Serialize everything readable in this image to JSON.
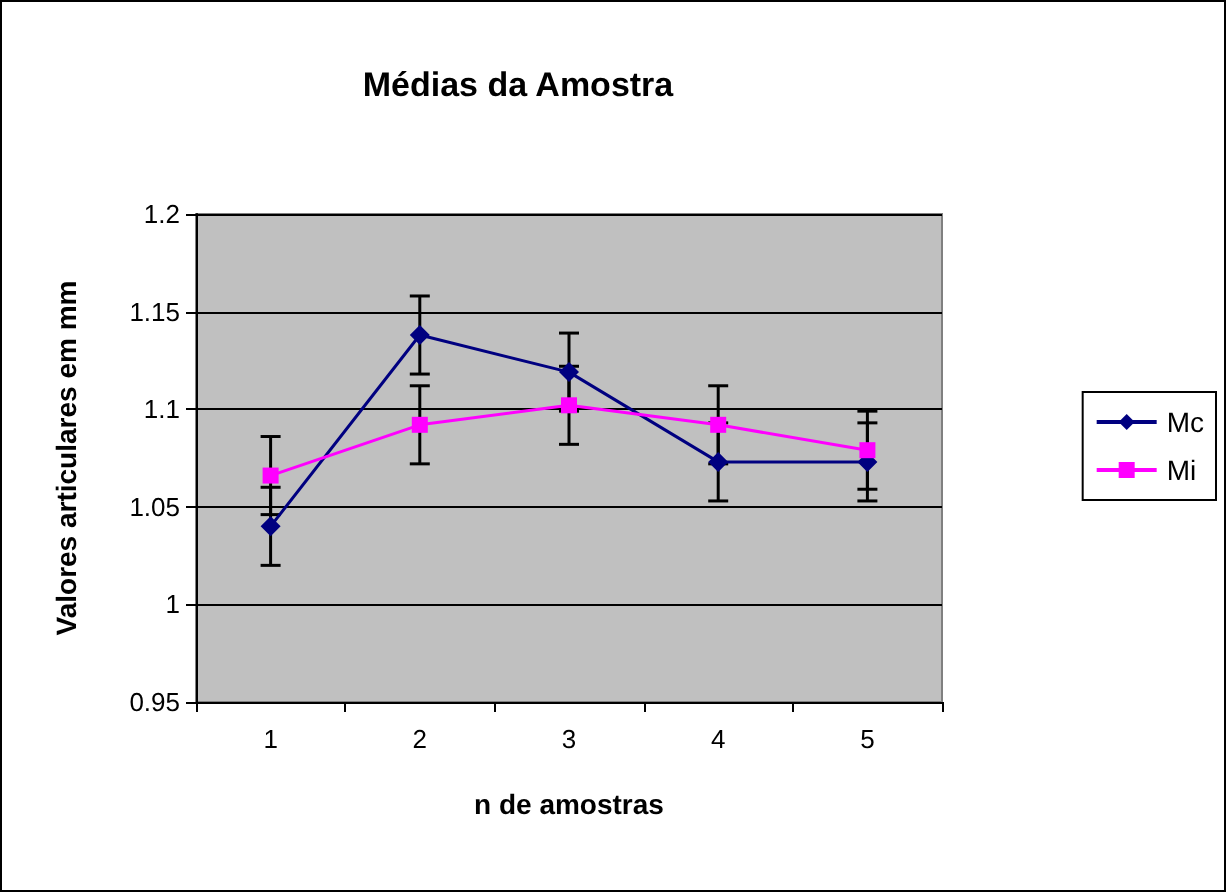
{
  "chart_data": {
    "type": "line",
    "title": "Médias da Amostra",
    "xlabel": "n de amostras",
    "ylabel": "Valores articulares em mm",
    "categories": [
      "1",
      "2",
      "3",
      "4",
      "5"
    ],
    "series": [
      {
        "name": "Mc",
        "color": "#000080",
        "marker": "diamond",
        "values": [
          1.04,
          1.138,
          1.119,
          1.073,
          1.073
        ],
        "errors": [
          0.02,
          0.02,
          0.02,
          0.02,
          0.02
        ]
      },
      {
        "name": "Mi",
        "color": "#ff00ff",
        "marker": "square",
        "values": [
          1.066,
          1.092,
          1.102,
          1.092,
          1.079
        ],
        "errors": [
          0.02,
          0.02,
          0.02,
          0.02,
          0.02
        ]
      }
    ],
    "ylim": [
      0.95,
      1.2
    ],
    "yticks": [
      0.95,
      1,
      1.05,
      1.1,
      1.15,
      1.2
    ],
    "grid": "y",
    "legend": "right"
  }
}
